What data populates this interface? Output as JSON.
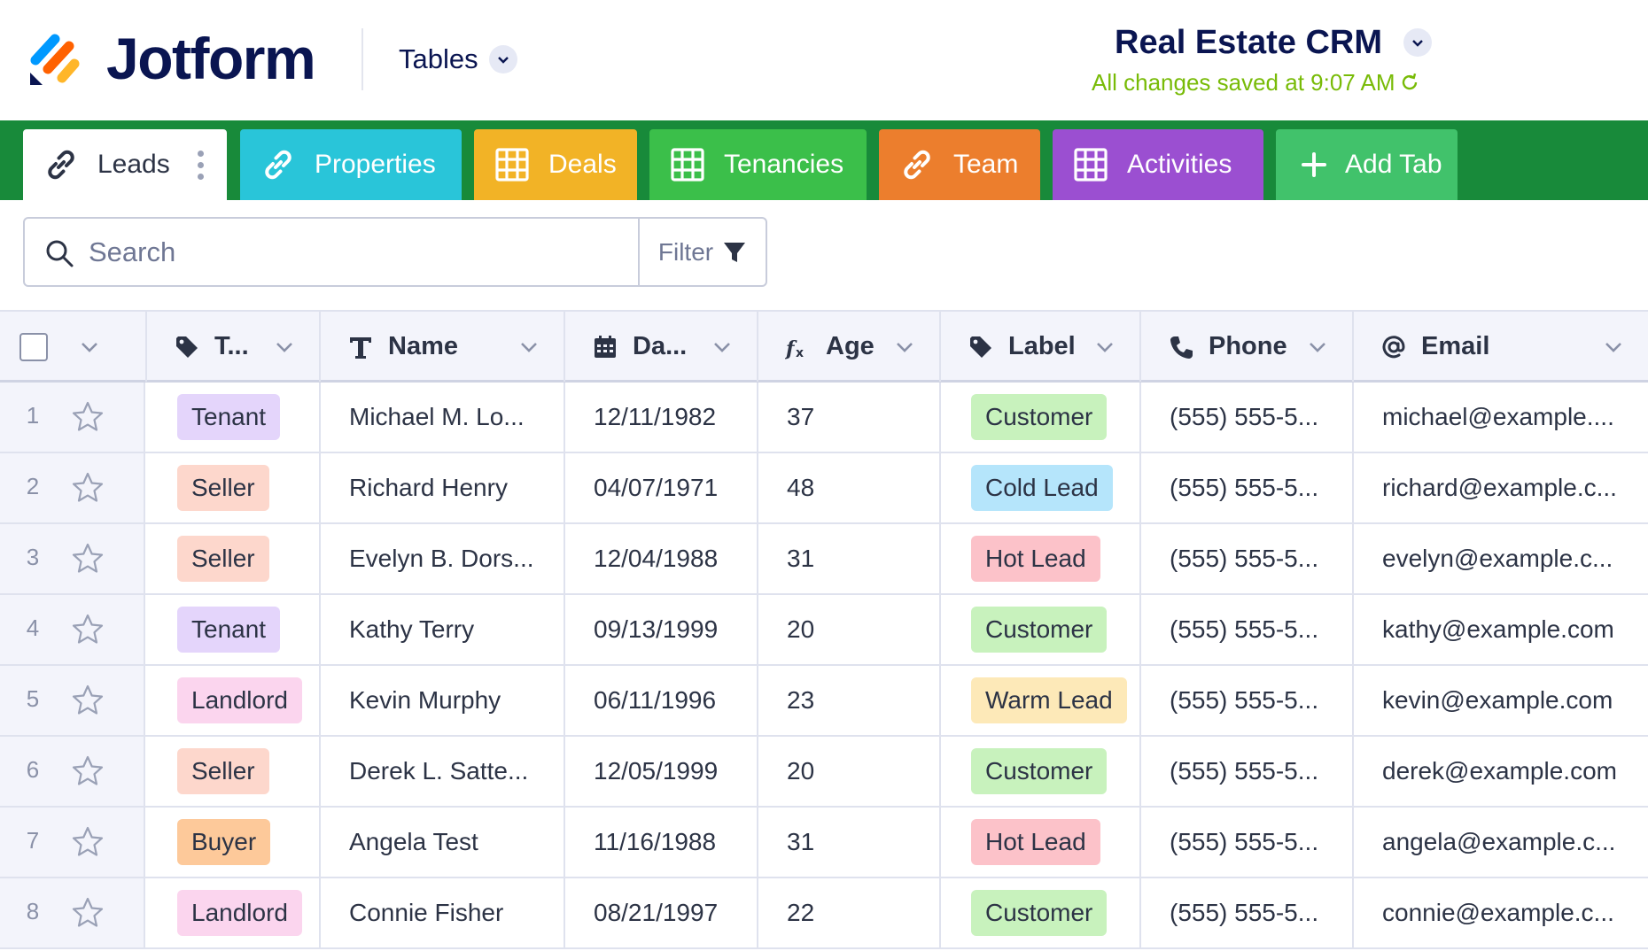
{
  "header": {
    "brand": "Jotform",
    "tables_label": "Tables",
    "app_title": "Real Estate CRM",
    "saved_status": "All changes saved at 9:07 AM"
  },
  "tabs": [
    {
      "label": "Leads",
      "icon": "link-icon",
      "color": "#ffffff",
      "active": true
    },
    {
      "label": "Properties",
      "icon": "link-icon",
      "color": "#29c5d9"
    },
    {
      "label": "Deals",
      "icon": "grid-icon",
      "color": "#f2b326"
    },
    {
      "label": "Tenancies",
      "icon": "grid-icon",
      "color": "#3bbf4a"
    },
    {
      "label": "Team",
      "icon": "link-icon",
      "color": "#ec7e2d"
    },
    {
      "label": "Activities",
      "icon": "grid-icon",
      "color": "#9b4fd1"
    },
    {
      "label": "Add Tab",
      "icon": "plus-icon",
      "color": "#41c26b"
    }
  ],
  "search": {
    "placeholder": "Search",
    "filter_label": "Filter"
  },
  "columns": [
    {
      "label": "T...",
      "icon": "tag-icon"
    },
    {
      "label": "Name",
      "icon": "text-icon"
    },
    {
      "label": "Da...",
      "icon": "calendar-icon"
    },
    {
      "label": "Age",
      "icon": "formula-icon"
    },
    {
      "label": "Label",
      "icon": "tag-icon"
    },
    {
      "label": "Phone",
      "icon": "phone-icon"
    },
    {
      "label": "Email",
      "icon": "at-icon"
    }
  ],
  "type_colors": {
    "Tenant": "#e4d5fb",
    "Seller": "#fdd7cc",
    "Landlord": "#fbd5ee",
    "Buyer": "#fdc99a"
  },
  "label_colors": {
    "Customer": "#c8f2bd",
    "Cold Lead": "#b5e5fb",
    "Hot Lead": "#fcc2c9",
    "Warm Lead": "#fde9b8"
  },
  "rows": [
    {
      "num": "1",
      "type": "Tenant",
      "name": "Michael M. Lo...",
      "date": "12/11/1982",
      "age": "37",
      "label": "Customer",
      "phone": "(555) 555-5...",
      "email": "michael@example...."
    },
    {
      "num": "2",
      "type": "Seller",
      "name": "Richard Henry",
      "date": "04/07/1971",
      "age": "48",
      "label": "Cold Lead",
      "phone": "(555) 555-5...",
      "email": "richard@example.c..."
    },
    {
      "num": "3",
      "type": "Seller",
      "name": "Evelyn B. Dors...",
      "date": "12/04/1988",
      "age": "31",
      "label": "Hot Lead",
      "phone": "(555) 555-5...",
      "email": "evelyn@example.c..."
    },
    {
      "num": "4",
      "type": "Tenant",
      "name": "Kathy Terry",
      "date": "09/13/1999",
      "age": "20",
      "label": "Customer",
      "phone": "(555) 555-5...",
      "email": "kathy@example.com"
    },
    {
      "num": "5",
      "type": "Landlord",
      "name": "Kevin Murphy",
      "date": "06/11/1996",
      "age": "23",
      "label": "Warm Lead",
      "phone": "(555) 555-5...",
      "email": "kevin@example.com"
    },
    {
      "num": "6",
      "type": "Seller",
      "name": "Derek L. Satte...",
      "date": "12/05/1999",
      "age": "20",
      "label": "Customer",
      "phone": "(555) 555-5...",
      "email": "derek@example.com"
    },
    {
      "num": "7",
      "type": "Buyer",
      "name": "Angela Test",
      "date": "11/16/1988",
      "age": "31",
      "label": "Hot Lead",
      "phone": "(555) 555-5...",
      "email": "angela@example.c..."
    },
    {
      "num": "8",
      "type": "Landlord",
      "name": "Connie Fisher",
      "date": "08/21/1997",
      "age": "22",
      "label": "Customer",
      "phone": "(555) 555-5...",
      "email": "connie@example.c..."
    }
  ]
}
